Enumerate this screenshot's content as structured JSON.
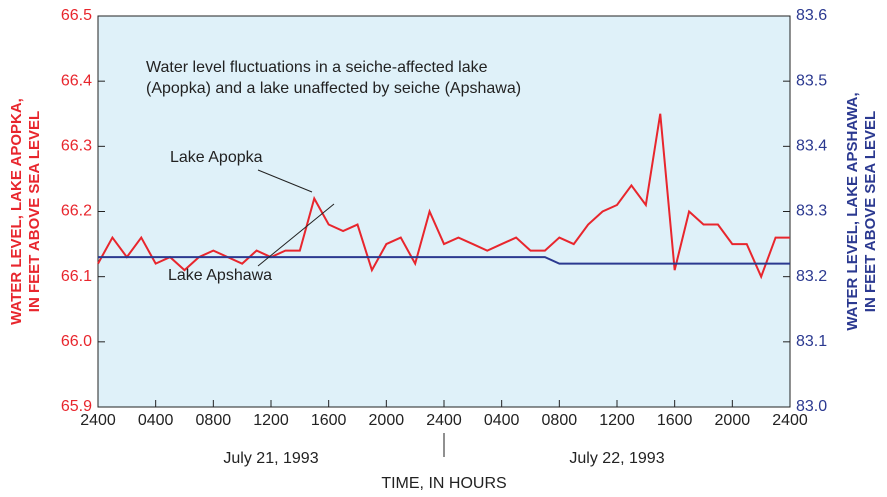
{
  "chart_data": {
    "type": "line",
    "annotation": [
      "Water level fluctuations in a seiche-affected lake",
      "(Apopka) and a lake unaffected by seiche (Apshawa)"
    ],
    "xlabel": "TIME, IN HOURS",
    "ylabel": [
      "WATER LEVEL, LAKE APOPKA,",
      "IN FEET ABOVE SEA LEVEL"
    ],
    "y2label": [
      "WATER LEVEL, LAKE APSHAWA,",
      "IN FEET ABOVE SEA LEVEL"
    ],
    "date_labels": [
      {
        "value": 12,
        "label": "July 21, 1993"
      },
      {
        "value": 36,
        "label": "July 22, 1993"
      }
    ],
    "day_divider": 24,
    "xlim": [
      0,
      48
    ],
    "xticks": [
      {
        "value": 0,
        "label": "2400"
      },
      {
        "value": 4,
        "label": "0400"
      },
      {
        "value": 8,
        "label": "0800"
      },
      {
        "value": 12,
        "label": "1200"
      },
      {
        "value": 16,
        "label": "1600"
      },
      {
        "value": 20,
        "label": "2000"
      },
      {
        "value": 24,
        "label": "2400"
      },
      {
        "value": 28,
        "label": "0400"
      },
      {
        "value": 32,
        "label": "0800"
      },
      {
        "value": 36,
        "label": "1200"
      },
      {
        "value": 40,
        "label": "1600"
      },
      {
        "value": 44,
        "label": "2000"
      },
      {
        "value": 48,
        "label": "2400"
      }
    ],
    "ylim": [
      65.9,
      66.5
    ],
    "yticks": [
      65.9,
      {
        "value": 66,
        "label": "66.0"
      },
      66.1,
      66.2,
      66.3,
      66.4,
      66.5
    ],
    "y2lim": [
      83.0,
      83.6
    ],
    "y2ticks": [
      {
        "value": 83,
        "label": "83.0"
      },
      83.1,
      83.2,
      83.3,
      83.4,
      83.5,
      83.6
    ],
    "background": "#dff1f9",
    "series": [
      {
        "name": "Lake Apopka",
        "color": "#e8262d",
        "x": [
          0,
          1,
          2,
          3,
          4,
          5,
          6,
          7,
          8,
          9,
          10,
          11,
          12,
          13,
          14,
          15,
          16,
          17,
          18,
          19,
          20,
          21,
          22,
          23,
          24,
          25,
          26,
          27,
          28,
          29,
          30,
          31,
          32,
          33,
          34,
          35,
          36,
          37,
          38,
          39,
          40,
          41,
          42,
          43,
          44,
          45,
          46,
          47,
          48
        ],
        "values": [
          66.12,
          66.16,
          66.13,
          66.16,
          66.12,
          66.13,
          66.11,
          66.13,
          66.14,
          66.13,
          66.12,
          66.14,
          66.13,
          66.14,
          66.14,
          66.22,
          66.18,
          66.17,
          66.18,
          66.11,
          66.15,
          66.16,
          66.12,
          66.2,
          66.15,
          66.16,
          66.15,
          66.14,
          66.15,
          66.16,
          66.14,
          66.14,
          66.16,
          66.15,
          66.18,
          66.2,
          66.21,
          66.24,
          66.21,
          66.35,
          66.11,
          66.2,
          66.18,
          66.18,
          66.15,
          66.15,
          66.1,
          66.16,
          66.16
        ]
      },
      {
        "name": "Lake Apshawa",
        "color": "#2b3990",
        "axis": "y2",
        "x": [
          0,
          31,
          32,
          48
        ],
        "values": [
          83.23,
          83.23,
          83.22,
          83.22
        ]
      }
    ]
  }
}
